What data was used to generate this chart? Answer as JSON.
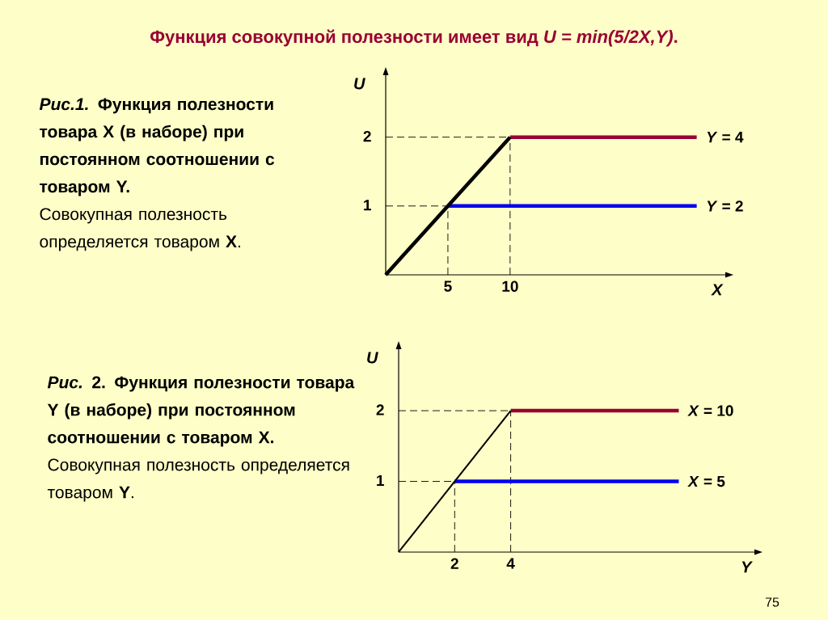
{
  "chart_data": [
    {
      "type": "line",
      "title": "Функция совокупной полезности имеет вид *U = min(5/2X,Y)*.",
      "xlabel": "X",
      "ylabel": "U",
      "xlim": [
        0,
        27.3
      ],
      "ylim": [
        0,
        2.9
      ],
      "xticks": [
        5,
        10
      ],
      "yticks": [
        1,
        2
      ],
      "annotations": [
        "*Рис.1.* Функция полезности товара X (в наборе) при постоянном соотношении с товаром Y.",
        "Совокупная полезность определяется товаром **X**."
      ],
      "series": [
        {
          "color": "#000000",
          "x": [
            0,
            5
          ],
          "values": [
            1,
            1
          ],
          "line_style": "dashed"
        },
        {
          "color": "#000000",
          "x": [
            0,
            10
          ],
          "values": [
            2,
            2
          ],
          "line_style": "dashed"
        },
        {
          "color": "#000000",
          "x": [
            5,
            5
          ],
          "values": [
            0,
            1
          ],
          "line_style": "dashed"
        },
        {
          "color": "#000000",
          "x": [
            10,
            10
          ],
          "values": [
            0,
            2
          ],
          "line_style": "dashed"
        },
        {
          "color": "#990033",
          "name": "*Y* = 4",
          "x": [
            10,
            25
          ],
          "values": [
            2,
            2
          ]
        },
        {
          "color": "#0000ee",
          "name": "*Y* = 2",
          "x": [
            5,
            25
          ],
          "values": [
            1,
            1
          ]
        },
        {
          "color": "#000000",
          "x": [
            0,
            10
          ],
          "values": [
            0,
            2
          ]
        }
      ]
    },
    {
      "type": "line",
      "xlabel": "Y",
      "ylabel": "U",
      "xlim": [
        0,
        12.7
      ],
      "ylim": [
        0,
        2.87
      ],
      "xticks": [
        2,
        4
      ],
      "yticks": [
        1,
        2
      ],
      "annotations": [
        "*Рис.* 2. Функция полезности товара Y (в наборе) при постоянном соотношении с товаром X.",
        "Совокупная полезность определяется товаром **Y**.",
        "75"
      ],
      "series": [
        {
          "color": "#000000",
          "x": [
            0,
            2
          ],
          "values": [
            1,
            1
          ],
          "line_style": "dashed"
        },
        {
          "color": "#000000",
          "x": [
            0,
            4
          ],
          "values": [
            2,
            2
          ],
          "line_style": "dashed"
        },
        {
          "color": "#000000",
          "x": [
            2,
            2
          ],
          "values": [
            0,
            1
          ],
          "line_style": "dashed"
        },
        {
          "color": "#000000",
          "x": [
            4,
            4
          ],
          "values": [
            0,
            2
          ],
          "line_style": "dashed"
        },
        {
          "color": "#990033",
          "name": "*X* = 10",
          "x": [
            4,
            10
          ],
          "values": [
            2,
            2
          ]
        },
        {
          "color": "#0000ee",
          "name": "*X* = 5",
          "x": [
            2,
            10
          ],
          "values": [
            1,
            1
          ]
        },
        {
          "color": "#000000",
          "x": [
            0,
            4
          ],
          "values": [
            0,
            2
          ]
        }
      ]
    }
  ]
}
